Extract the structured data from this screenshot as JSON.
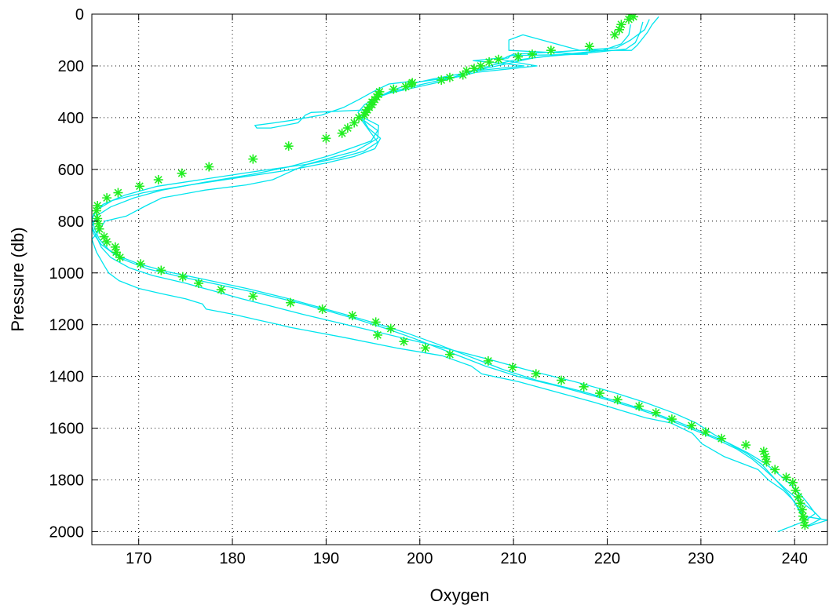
{
  "chart_data": {
    "type": "line",
    "xlabel": "Oxygen",
    "ylabel": "Pressure (db)",
    "xlim": [
      165,
      243.5
    ],
    "ylim": [
      0,
      2050
    ],
    "y_inverted": true,
    "grid": true,
    "grid_style": "dotted",
    "xticks": [
      170,
      180,
      190,
      200,
      210,
      220,
      230,
      240
    ],
    "yticks": [
      0,
      200,
      400,
      600,
      800,
      1000,
      1200,
      1400,
      1600,
      1800,
      2000
    ],
    "colors": {
      "profiles": "#00e5ee",
      "markers": "#22ee22"
    },
    "marker_symbol": "*",
    "series": [
      {
        "style": "line",
        "x": [
          225.5,
          224.8,
          224.3,
          223.2,
          222.6,
          217.1,
          211.0,
          209.5,
          209.5,
          217.9,
          209.7,
          209.4,
          208.4,
          205.7,
          208.8,
          211.1,
          205.7,
          204.6,
          202.3,
          199.3,
          199.1,
          196.7,
          195.0,
          193.5,
          191.9,
          189.5,
          186.4,
          184.5,
          182.4,
          182.6,
          184.1,
          187.0,
          187.8,
          188.4,
          194.3,
          194.0,
          195.6,
          195.5,
          193.1,
          191.0,
          188.0,
          186.1,
          184.3,
          181.5,
          177.1,
          172.5,
          170.8,
          168.7,
          166.4,
          165.5,
          165.0,
          165.2,
          165.5,
          166.3,
          166.8,
          167.9,
          170.0,
          172.4,
          175.0,
          176.8,
          177.2,
          180.1,
          182.5,
          185.0,
          186.1,
          192.0,
          197.5,
          202.4,
          205.5,
          206.6,
          210.5,
          218.6,
          224.1,
          226.8,
          229.1,
          230.1,
          232.5,
          236.1,
          237.2,
          238.8,
          239.9,
          240.6,
          240.9,
          243.5,
          242.2,
          241.4
        ],
        "y": [
          10,
          40,
          70,
          120,
          140,
          140,
          80,
          100,
          140,
          155,
          160,
          170,
          170,
          180,
          190,
          200,
          220,
          240,
          250,
          265,
          260,
          270,
          300,
          330,
          360,
          390,
          410,
          420,
          430,
          440,
          440,
          420,
          390,
          380,
          370,
          400,
          430,
          480,
          530,
          550,
          580,
          610,
          640,
          660,
          680,
          710,
          740,
          780,
          800,
          850,
          870,
          890,
          920,
          970,
          1000,
          1030,
          1060,
          1080,
          1100,
          1120,
          1140,
          1160,
          1180,
          1200,
          1210,
          1250,
          1290,
          1320,
          1360,
          1390,
          1420,
          1500,
          1560,
          1580,
          1620,
          1660,
          1710,
          1760,
          1800,
          1840,
          1880,
          1920,
          1940,
          1955,
          1970,
          1980
        ]
      },
      {
        "style": "line",
        "x": [
          224.5,
          224.0,
          222.5,
          221.0,
          215.0,
          210.0,
          209.3,
          208.8,
          210.0,
          212.5,
          210.0,
          206.0,
          203.7,
          201.8,
          199.3,
          196.8,
          195.2,
          194.1,
          193.4,
          194.0,
          195.5,
          194.8,
          192.5,
          190.5,
          188.6,
          186.0,
          182.0,
          177.0,
          172.5,
          169.5,
          167.0,
          165.5,
          165.0,
          165.5,
          166.0,
          167.0,
          169.0,
          171.5,
          175.0,
          178.0,
          181.0,
          184.3,
          187.5,
          191.0,
          194.5,
          198.0,
          201.5,
          204.8,
          208.0,
          212.0,
          216.5,
          220.5,
          224.0,
          227.0,
          229.5,
          231.2,
          233.0,
          235.0,
          236.5,
          237.5,
          238.5,
          239.5,
          240.2,
          240.8,
          241.2
        ],
        "y": [
          20,
          60,
          100,
          130,
          145,
          155,
          165,
          175,
          185,
          200,
          210,
          225,
          245,
          265,
          285,
          305,
          325,
          350,
          380,
          410,
          450,
          490,
          520,
          545,
          565,
          590,
          620,
          650,
          680,
          710,
          745,
          780,
          820,
          860,
          900,
          940,
          980,
          1010,
          1040,
          1070,
          1100,
          1130,
          1160,
          1190,
          1220,
          1250,
          1280,
          1310,
          1340,
          1380,
          1420,
          1460,
          1500,
          1540,
          1580,
          1620,
          1660,
          1700,
          1740,
          1780,
          1820,
          1860,
          1900,
          1940,
          1980
        ]
      },
      {
        "style": "line",
        "x": [
          223.8,
          223.5,
          223.0,
          222.0,
          218.0,
          213.0,
          209.8,
          208.0,
          206.5,
          205.0,
          203.5,
          201.0,
          198.5,
          196.2,
          195.0,
          194.3,
          193.8,
          194.5,
          195.8,
          195.2,
          193.0,
          190.0,
          186.5,
          181.0,
          175.5,
          170.5,
          167.2,
          165.6,
          165.0,
          165.3,
          165.8,
          166.8,
          168.5,
          171.0,
          174.5,
          178.5,
          183.0,
          187.0,
          190.5,
          193.8,
          196.8,
          199.5,
          202.0,
          204.5,
          207.0,
          210.5,
          215.0,
          219.0,
          222.8,
          226.0,
          228.8,
          231.5,
          233.8,
          235.5,
          236.8,
          238.0,
          239.2,
          240.5,
          242.0,
          242.8,
          241.5
        ],
        "y": [
          30,
          70,
          110,
          135,
          150,
          165,
          180,
          195,
          210,
          225,
          245,
          265,
          285,
          310,
          335,
          365,
          400,
          440,
          480,
          520,
          550,
          575,
          600,
          630,
          660,
          690,
          720,
          755,
          790,
          830,
          870,
          910,
          950,
          985,
          1015,
          1045,
          1080,
          1115,
          1150,
          1185,
          1220,
          1255,
          1290,
          1325,
          1360,
          1400,
          1440,
          1480,
          1520,
          1560,
          1600,
          1640,
          1680,
          1720,
          1760,
          1800,
          1840,
          1880,
          1920,
          1950,
          1975
        ]
      },
      {
        "style": "line",
        "x": [
          222.5,
          222.3,
          221.5,
          219.5,
          215.5,
          212.0,
          209.5,
          207.0,
          204.5,
          201.5,
          199.0,
          197.0,
          195.6,
          194.6,
          194.0,
          193.8,
          194.6,
          195.5,
          194.0,
          191.5,
          188.0,
          183.0,
          177.5,
          172.0,
          168.5,
          166.2,
          165.2,
          164.9,
          165.2,
          166.0,
          167.5,
          170.0,
          173.0,
          177.0,
          181.5,
          185.5,
          189.0,
          192.5,
          195.8,
          198.8,
          201.5,
          204.0,
          206.5,
          209.0,
          212.5,
          217.0,
          221.0,
          224.5,
          227.5,
          230.2,
          232.8,
          235.0,
          236.8,
          238.2,
          239.5,
          240.6,
          241.5,
          242.2,
          241.0,
          238.2
        ],
        "y": [
          40,
          80,
          115,
          140,
          155,
          170,
          190,
          210,
          230,
          250,
          270,
          295,
          320,
          345,
          375,
          410,
          450,
          495,
          530,
          555,
          580,
          605,
          635,
          665,
          700,
          735,
          770,
          810,
          850,
          890,
          930,
          965,
          995,
          1025,
          1060,
          1095,
          1130,
          1165,
          1200,
          1235,
          1270,
          1305,
          1340,
          1375,
          1415,
          1455,
          1495,
          1535,
          1575,
          1615,
          1655,
          1695,
          1735,
          1775,
          1815,
          1855,
          1895,
          1930,
          1960,
          2000
        ]
      },
      {
        "style": "marker",
        "x": [
          222.5,
          222.8,
          222.3,
          221.5,
          221.3,
          220.8,
          218.1,
          214.0,
          212.0,
          210.5,
          208.4,
          207.4,
          206.5,
          205.8,
          205.0,
          204.6,
          203.2,
          202.3,
          199.2,
          199.1,
          198.5,
          197.2,
          195.7,
          195.6,
          195.4,
          195.2,
          194.9,
          194.9,
          194.6,
          194.4,
          194.2,
          194.1,
          193.5,
          193.0,
          192.3,
          191.7,
          190.0,
          186.0,
          182.2,
          177.5,
          174.6,
          172.1,
          170.1,
          167.8,
          166.6,
          165.6,
          165.5,
          165.6,
          165.7,
          165.8,
          166.3,
          166.6,
          167.5,
          167.6,
          168.0,
          170.2,
          172.4,
          174.7,
          176.4,
          178.8,
          182.2,
          186.2,
          189.6,
          192.8,
          195.3,
          196.9,
          195.5,
          198.3,
          200.6,
          203.2,
          207.3,
          209.9,
          212.4,
          215.1,
          217.5,
          219.2,
          221.1,
          223.4,
          225.2,
          226.9,
          229.0,
          230.5,
          232.2,
          234.8,
          236.7,
          236.9,
          237.0,
          237.9,
          239.1,
          239.8,
          240.1,
          240.4,
          240.6,
          240.8,
          240.9,
          241.0,
          241.1
        ],
        "y": [
          0,
          10,
          20,
          40,
          60,
          80,
          125,
          140,
          155,
          165,
          175,
          185,
          200,
          210,
          220,
          235,
          245,
          255,
          265,
          270,
          280,
          290,
          300,
          310,
          320,
          330,
          340,
          350,
          360,
          370,
          380,
          390,
          400,
          420,
          440,
          460,
          480,
          510,
          560,
          590,
          615,
          640,
          665,
          690,
          710,
          740,
          760,
          790,
          810,
          830,
          860,
          880,
          900,
          920,
          940,
          965,
          990,
          1015,
          1040,
          1065,
          1090,
          1115,
          1140,
          1165,
          1190,
          1215,
          1240,
          1265,
          1290,
          1315,
          1340,
          1365,
          1390,
          1415,
          1440,
          1465,
          1490,
          1515,
          1540,
          1565,
          1590,
          1615,
          1640,
          1665,
          1690,
          1710,
          1730,
          1760,
          1790,
          1810,
          1840,
          1865,
          1890,
          1915,
          1940,
          1955,
          1975
        ]
      }
    ]
  }
}
